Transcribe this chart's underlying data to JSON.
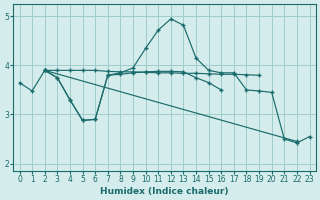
{
  "background_color": "#d5ecec",
  "grid_color": "#a0cccc",
  "line_color": "#1a6b6b",
  "xlabel": "Humidex (Indice chaleur)",
  "xlim": [
    -0.5,
    23.5
  ],
  "ylim": [
    1.85,
    5.25
  ],
  "yticks": [
    2,
    3,
    4,
    5
  ],
  "xticks": [
    0,
    1,
    2,
    3,
    4,
    5,
    6,
    7,
    8,
    9,
    10,
    11,
    12,
    13,
    14,
    15,
    16,
    17,
    18,
    19,
    20,
    21,
    22,
    23
  ],
  "lines": [
    {
      "x": [
        0,
        1,
        2,
        3,
        4,
        5,
        6,
        7,
        8,
        9,
        10,
        11,
        12,
        13,
        14,
        15,
        16,
        17,
        18,
        19,
        20,
        21,
        22,
        23
      ],
      "y": [
        3.65,
        3.48,
        3.9,
        3.75,
        3.3,
        2.88,
        2.9,
        3.8,
        3.85,
        3.95,
        4.35,
        4.72,
        4.95,
        4.82,
        4.15,
        3.9,
        3.85,
        3.85,
        3.5,
        3.48,
        3.45,
        2.5,
        2.42,
        2.55
      ]
    },
    {
      "x": [
        2,
        3,
        4,
        5,
        6,
        7,
        8,
        9,
        10,
        11,
        12,
        13,
        14,
        15,
        16,
        17,
        18,
        19
      ],
      "y": [
        3.9,
        3.9,
        3.9,
        3.9,
        3.9,
        3.88,
        3.87,
        3.87,
        3.86,
        3.85,
        3.85,
        3.84,
        3.84,
        3.83,
        3.82,
        3.82,
        3.81,
        3.8
      ]
    },
    {
      "x": [
        2,
        3,
        4,
        5,
        6,
        7,
        8,
        9,
        10,
        11,
        12,
        13,
        14,
        15,
        16
      ],
      "y": [
        3.9,
        3.75,
        3.3,
        2.88,
        2.9,
        3.8,
        3.82,
        3.85,
        3.87,
        3.88,
        3.88,
        3.87,
        3.75,
        3.65,
        3.5
      ]
    },
    {
      "x": [
        2,
        22
      ],
      "y": [
        3.9,
        2.45
      ]
    }
  ]
}
